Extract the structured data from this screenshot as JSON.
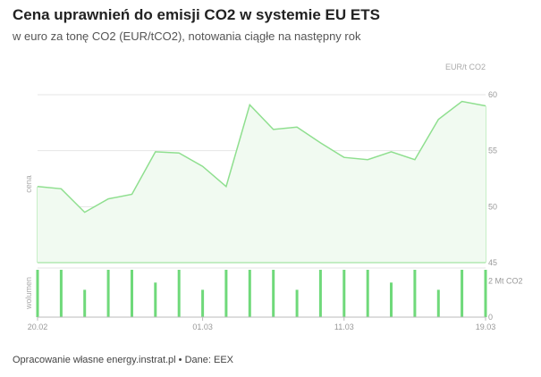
{
  "title": "Cena uprawnień do emisji CO2 w systemie EU ETS",
  "subtitle": "w euro za tonę CO2 (EUR/tCO2), notowania ciągłe na następny rok",
  "footer": "Opracowanie własne energy.instrat.pl • Dane: EEX",
  "colors": {
    "line": "#8fdf8f",
    "area": "#f1faf1",
    "bar": "#6fd97a",
    "grid": "#e6e6e6"
  },
  "chart_data": [
    {
      "type": "area",
      "ylabel": "cena",
      "unit_label": "EUR/t CO2",
      "ylim": [
        45,
        61
      ],
      "yticks": [
        "60",
        "55",
        "50",
        "45"
      ],
      "x_tick_labels": [
        "20.02",
        "01.03",
        "11.03",
        "19.03"
      ],
      "x": [
        "20.02",
        "21.02",
        "22.02",
        "25.02",
        "26.02",
        "27.02",
        "28.02",
        "01.03",
        "04.03",
        "05.03",
        "06.03",
        "07.03",
        "08.03",
        "11.03",
        "12.03",
        "13.03",
        "14.03",
        "15.03",
        "18.03",
        "19.03"
      ],
      "values": [
        51.8,
        51.6,
        49.5,
        50.7,
        51.1,
        54.9,
        54.8,
        53.6,
        51.8,
        59.1,
        56.9,
        57.1,
        55.7,
        54.4,
        54.2,
        54.9,
        54.2,
        57.8,
        59.4,
        59.0
      ]
    },
    {
      "type": "bar",
      "ylabel": "wolumen",
      "yticks": [
        "2 Mt CO2",
        "0"
      ],
      "ylim": [
        0,
        2.7
      ],
      "x": [
        "20.02",
        "21.02",
        "22.02",
        "25.02",
        "26.02",
        "27.02",
        "28.02",
        "01.03",
        "04.03",
        "05.03",
        "06.03",
        "07.03",
        "08.03",
        "11.03",
        "12.03",
        "13.03",
        "14.03",
        "15.03",
        "18.03",
        "19.03"
      ],
      "values": [
        2.6,
        2.6,
        1.5,
        2.6,
        2.6,
        1.9,
        2.6,
        1.5,
        2.6,
        2.6,
        2.6,
        1.5,
        2.6,
        2.6,
        2.6,
        1.9,
        2.6,
        1.5,
        2.6,
        2.6
      ]
    }
  ]
}
